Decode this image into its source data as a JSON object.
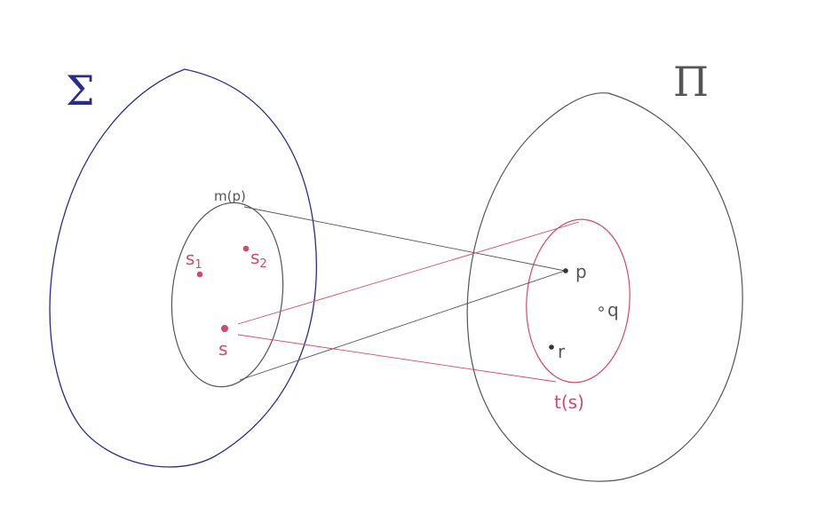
{
  "colors": {
    "sigma": "#2b2b8f",
    "pi": "#555555",
    "pencil": "#555555",
    "red": "#d24a6a",
    "point_dark": "#333333"
  },
  "sets": {
    "sigma_label": "Σ",
    "pi_label": "Π"
  },
  "subsets": {
    "m_label": "m(p)",
    "t_label": "t(s)"
  },
  "points": {
    "s1": {
      "base": "s",
      "sub": "1"
    },
    "s2": {
      "base": "s",
      "sub": "2"
    },
    "s": "s",
    "p": "p",
    "q": "q",
    "r": "r"
  }
}
